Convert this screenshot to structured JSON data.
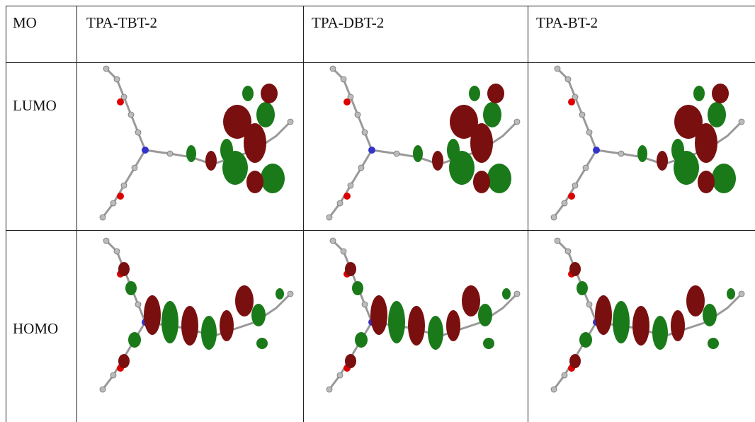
{
  "table": {
    "header": [
      "MO",
      "TPA-TBT-2",
      "TPA-DBT-2",
      "TPA-BT-2"
    ],
    "rows": [
      [
        "LUMO"
      ],
      [
        "HOMO"
      ]
    ]
  }
}
